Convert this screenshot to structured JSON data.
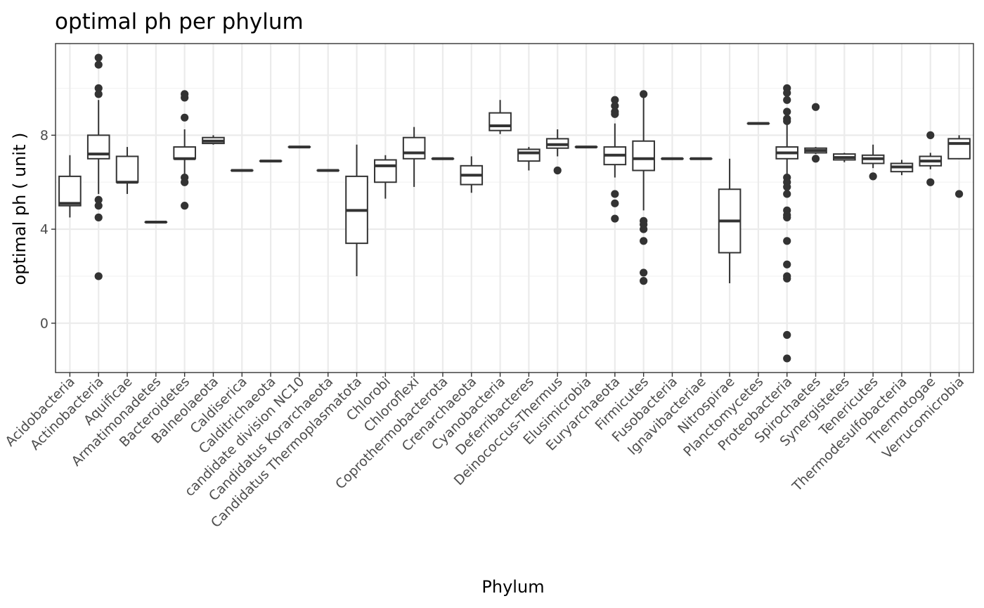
{
  "chart_data": {
    "type": "box",
    "title": "optimal ph per phylum",
    "xlabel": "Phylum",
    "ylabel": "optimal ph ( unit )",
    "ylim": [
      -2.1,
      11.9
    ],
    "yticks": [
      0,
      4,
      8
    ],
    "grid": true,
    "legend": "none",
    "colors": {
      "box": "#333333",
      "grid_major": "#ebebeb",
      "grid_minor": "#f2f2f2",
      "panel_border": "#333333"
    },
    "categories": [
      "Acidobacteria",
      "Actinobacteria",
      "Aquificae",
      "Armatimonadetes",
      "Bacteroidetes",
      "Balneolaeota",
      "Caldiserica",
      "Calditrichaeota",
      "candidate division NC10",
      "Candidatus Korarchaeota",
      "Candidatus Thermoplasmatota",
      "Chlorobi",
      "Chloroflexi",
      "Coprothermobacterota",
      "Crenarchaeota",
      "Cyanobacteria",
      "Deferribacteres",
      "Deinococcus-Thermus",
      "Elusimicrobia",
      "Euryarchaeota",
      "Firmicutes",
      "Fusobacteria",
      "Ignavibacteriae",
      "Nitrospirae",
      "Planctomycetes",
      "Proteobacteria",
      "Spirochaetes",
      "Synergistetes",
      "Tenericutes",
      "Thermodesulfobacteria",
      "Thermotogae",
      "Verrucomicrobia"
    ],
    "boxes": [
      {
        "min": 4.5,
        "q1": 5.0,
        "median": 5.1,
        "q3": 6.25,
        "max": 7.15,
        "outliers": []
      },
      {
        "min": 5.5,
        "q1": 7.0,
        "median": 7.2,
        "q3": 8.0,
        "max": 9.5,
        "outliers": [
          11.3,
          11.0,
          10.0,
          9.75,
          5.25,
          5.0,
          4.5,
          2.0
        ]
      },
      {
        "min": 5.5,
        "q1": 6.0,
        "median": 6.0,
        "q3": 7.1,
        "max": 7.5,
        "outliers": []
      },
      {
        "min": 4.3,
        "q1": 4.3,
        "median": 4.3,
        "q3": 4.3,
        "max": 4.3,
        "outliers": []
      },
      {
        "min": 6.25,
        "q1": 7.0,
        "median": 7.0,
        "q3": 7.5,
        "max": 8.25,
        "outliers": [
          9.75,
          9.6,
          8.75,
          6.2,
          6.0,
          5.0
        ]
      },
      {
        "min": 7.6,
        "q1": 7.65,
        "median": 7.75,
        "q3": 7.9,
        "max": 8.0,
        "outliers": []
      },
      {
        "min": 6.5,
        "q1": 6.5,
        "median": 6.5,
        "q3": 6.5,
        "max": 6.5,
        "outliers": []
      },
      {
        "min": 6.9,
        "q1": 6.9,
        "median": 6.9,
        "q3": 6.9,
        "max": 6.9,
        "outliers": []
      },
      {
        "min": 7.5,
        "q1": 7.5,
        "median": 7.5,
        "q3": 7.5,
        "max": 7.5,
        "outliers": []
      },
      {
        "min": 6.5,
        "q1": 6.5,
        "median": 6.5,
        "q3": 6.5,
        "max": 6.5,
        "outliers": []
      },
      {
        "min": 2.0,
        "q1": 3.4,
        "median": 4.8,
        "q3": 6.25,
        "max": 7.6,
        "outliers": []
      },
      {
        "min": 5.3,
        "q1": 6.0,
        "median": 6.7,
        "q3": 6.95,
        "max": 7.15,
        "outliers": []
      },
      {
        "min": 5.8,
        "q1": 7.0,
        "median": 7.25,
        "q3": 7.9,
        "max": 8.35,
        "outliers": []
      },
      {
        "min": 7.0,
        "q1": 7.0,
        "median": 7.0,
        "q3": 7.0,
        "max": 7.0,
        "outliers": []
      },
      {
        "min": 5.55,
        "q1": 5.9,
        "median": 6.3,
        "q3": 6.7,
        "max": 7.1,
        "outliers": []
      },
      {
        "min": 8.05,
        "q1": 8.2,
        "median": 8.4,
        "q3": 8.95,
        "max": 9.5,
        "outliers": []
      },
      {
        "min": 6.5,
        "q1": 6.9,
        "median": 7.25,
        "q3": 7.4,
        "max": 7.5,
        "outliers": []
      },
      {
        "min": 7.1,
        "q1": 7.45,
        "median": 7.6,
        "q3": 7.85,
        "max": 8.25,
        "outliers": [
          6.5
        ]
      },
      {
        "min": 7.5,
        "q1": 7.5,
        "median": 7.5,
        "q3": 7.5,
        "max": 7.5,
        "outliers": []
      },
      {
        "min": 6.2,
        "q1": 6.75,
        "median": 7.15,
        "q3": 7.5,
        "max": 8.5,
        "outliers": [
          9.5,
          9.25,
          9.0,
          8.9,
          5.5,
          5.1,
          4.45
        ]
      },
      {
        "min": 4.8,
        "q1": 6.5,
        "median": 7.0,
        "q3": 7.75,
        "max": 9.75,
        "outliers": [
          9.75,
          4.35,
          4.2,
          4.0,
          3.5,
          2.15,
          1.8
        ]
      },
      {
        "min": 7.0,
        "q1": 7.0,
        "median": 7.0,
        "q3": 7.0,
        "max": 7.0,
        "outliers": []
      },
      {
        "min": 7.0,
        "q1": 7.0,
        "median": 7.0,
        "q3": 7.0,
        "max": 7.0,
        "outliers": []
      },
      {
        "min": 1.7,
        "q1": 3.0,
        "median": 4.35,
        "q3": 5.7,
        "max": 7.0,
        "outliers": []
      },
      {
        "min": 8.5,
        "q1": 8.5,
        "median": 8.5,
        "q3": 8.5,
        "max": 8.5,
        "outliers": []
      },
      {
        "min": 6.2,
        "q1": 7.0,
        "median": 7.25,
        "q3": 7.5,
        "max": 8.5,
        "outliers": [
          10.0,
          9.8,
          9.5,
          9.0,
          8.7,
          8.6,
          6.2,
          6.0,
          5.8,
          5.5,
          4.8,
          4.6,
          4.5,
          3.5,
          2.5,
          2.0,
          1.9,
          -0.5,
          -1.5
        ]
      },
      {
        "min": 7.2,
        "q1": 7.25,
        "median": 7.35,
        "q3": 7.45,
        "max": 7.5,
        "outliers": [
          9.2,
          7.0
        ]
      },
      {
        "min": 6.85,
        "q1": 6.95,
        "median": 7.05,
        "q3": 7.2,
        "max": 7.25,
        "outliers": []
      },
      {
        "min": 6.6,
        "q1": 6.8,
        "median": 7.0,
        "q3": 7.15,
        "max": 7.6,
        "outliers": [
          6.25
        ]
      },
      {
        "min": 6.3,
        "q1": 6.45,
        "median": 6.65,
        "q3": 6.8,
        "max": 6.95,
        "outliers": []
      },
      {
        "min": 6.55,
        "q1": 6.7,
        "median": 6.9,
        "q3": 7.1,
        "max": 7.25,
        "outliers": [
          8.0,
          6.0
        ]
      },
      {
        "min": 7.0,
        "q1": 7.0,
        "median": 7.65,
        "q3": 7.85,
        "max": 8.0,
        "outliers": [
          5.5
        ]
      }
    ]
  }
}
